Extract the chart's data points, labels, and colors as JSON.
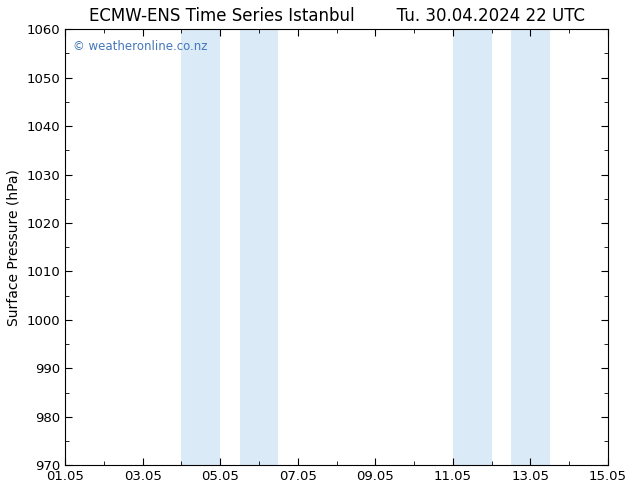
{
  "title_left": "ECMW-ENS Time Series Istanbul",
  "title_right": "Tu. 30.04.2024 22 UTC",
  "ylabel": "Surface Pressure (hPa)",
  "ylim": [
    970,
    1060
  ],
  "yticks": [
    970,
    980,
    990,
    1000,
    1010,
    1020,
    1030,
    1040,
    1050,
    1060
  ],
  "xlim": [
    0,
    14
  ],
  "xtick_positions": [
    0,
    2,
    4,
    6,
    8,
    10,
    12,
    14
  ],
  "xtick_labels": [
    "01.05",
    "03.05",
    "05.05",
    "07.05",
    "09.05",
    "11.05",
    "13.05",
    "15.05"
  ],
  "shade_bands": [
    {
      "x_start": 3.0,
      "x_end": 4.0
    },
    {
      "x_start": 4.5,
      "x_end": 5.5
    },
    {
      "x_start": 10.0,
      "x_end": 11.0
    },
    {
      "x_start": 11.5,
      "x_end": 12.5
    }
  ],
  "shade_color": "#daeaf7",
  "background_color": "#ffffff",
  "watermark": "© weatheronline.co.nz",
  "watermark_color": "#4477bb",
  "title_fontsize": 12,
  "axis_fontsize": 10,
  "tick_fontsize": 9.5
}
